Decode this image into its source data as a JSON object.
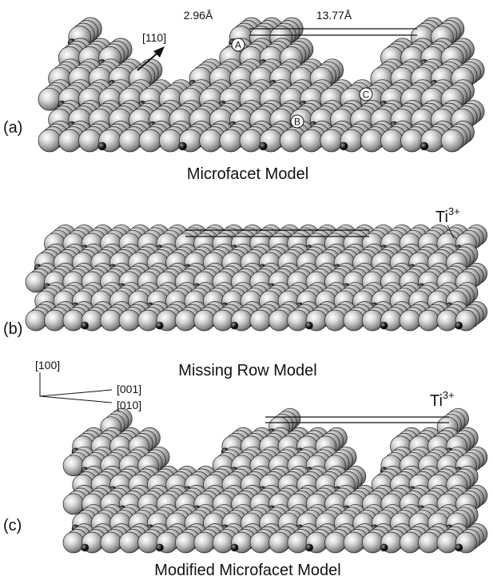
{
  "panels": [
    {
      "label": "(a)",
      "caption": "Microfacet Model",
      "annotations": {
        "distance_short": "2.96Å",
        "distance_long": "13.77Å",
        "direction": "[110]",
        "sites": [
          "A",
          "B",
          "C"
        ]
      }
    },
    {
      "label": "(b)",
      "caption": "Missing Row Model",
      "ion": {
        "symbol": "Ti",
        "charge": "3+"
      }
    },
    {
      "label": "(c)",
      "caption": "Modified Microfacet Model",
      "ion": {
        "symbol": "Ti",
        "charge": "3+"
      }
    }
  ],
  "axes": {
    "vertical": "[100]",
    "upper": "[001]",
    "lower": "[010]"
  }
}
